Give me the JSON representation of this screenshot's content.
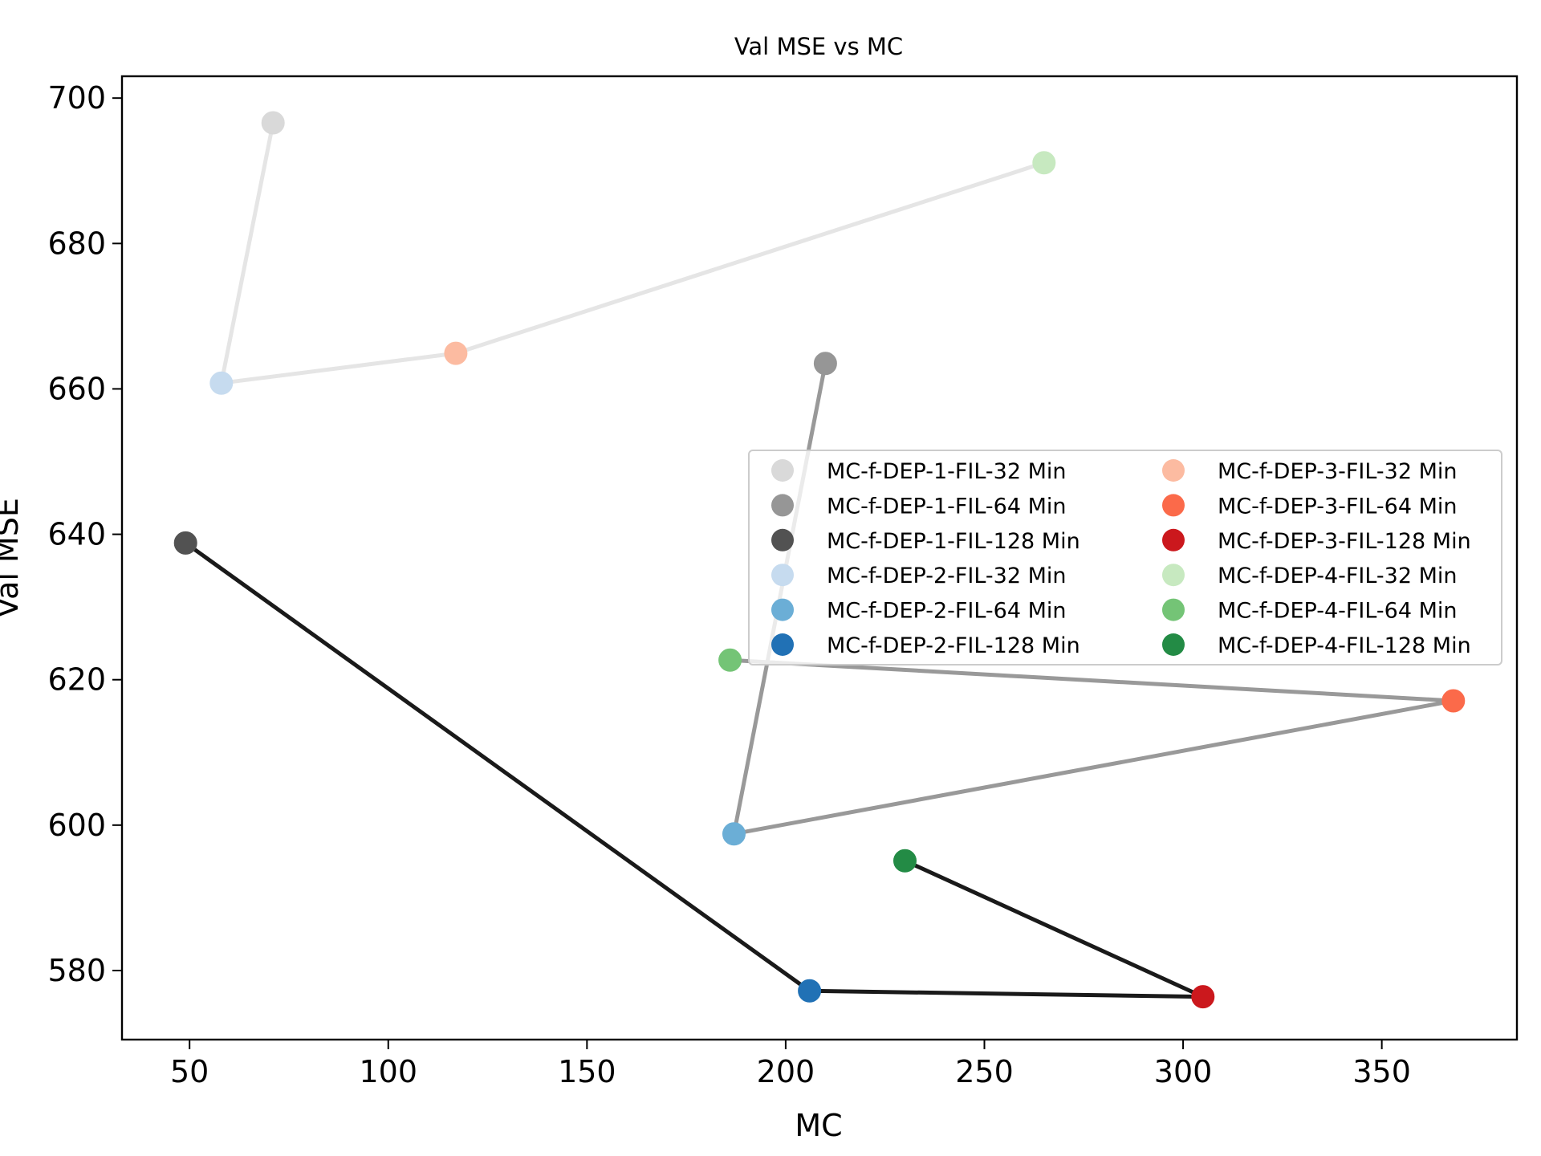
{
  "chart_data": {
    "type": "scatter",
    "title": "Val MSE vs MC",
    "xlabel": "MC",
    "ylabel": "Val MSE",
    "xlim": [
      33,
      384
    ],
    "ylim": [
      570.5,
      703
    ],
    "xticks": [
      50,
      100,
      150,
      200,
      250,
      300,
      350
    ],
    "yticks": [
      580,
      600,
      620,
      640,
      660,
      680,
      700
    ],
    "grid": false,
    "legend_position": "center-right",
    "series": [
      {
        "name": "MC-f-DEP-1-FIL-32 Min",
        "x": 71,
        "y": 696.6,
        "color": "#d9d9d9"
      },
      {
        "name": "MC-f-DEP-1-FIL-64 Min",
        "x": 210,
        "y": 663.5,
        "color": "#969696"
      },
      {
        "name": "MC-f-DEP-1-FIL-128 Min",
        "x": 49,
        "y": 638.8,
        "color": "#525252"
      },
      {
        "name": "MC-f-DEP-2-FIL-32 Min",
        "x": 58,
        "y": 660.8,
        "color": "#c6dbef"
      },
      {
        "name": "MC-f-DEP-2-FIL-64 Min",
        "x": 187,
        "y": 598.8,
        "color": "#6baed6"
      },
      {
        "name": "MC-f-DEP-2-FIL-128 Min",
        "x": 206,
        "y": 577.2,
        "color": "#2171b5"
      },
      {
        "name": "MC-f-DEP-3-FIL-32 Min",
        "x": 117,
        "y": 664.9,
        "color": "#fcbba1"
      },
      {
        "name": "MC-f-DEP-3-FIL-64 Min",
        "x": 368,
        "y": 617.1,
        "color": "#fb6a4a"
      },
      {
        "name": "MC-f-DEP-3-FIL-128 Min",
        "x": 305,
        "y": 576.4,
        "color": "#cb181d"
      },
      {
        "name": "MC-f-DEP-4-FIL-32 Min",
        "x": 265,
        "y": 691.1,
        "color": "#c7e9c0"
      },
      {
        "name": "MC-f-DEP-4-FIL-64 Min",
        "x": 186,
        "y": 622.7,
        "color": "#74c476"
      },
      {
        "name": "MC-f-DEP-4-FIL-128 Min",
        "x": 230,
        "y": 595.1,
        "color": "#238b45"
      }
    ],
    "lines": [
      {
        "group": "FIL-32",
        "color": "#e5e5e5",
        "points": [
          [
            71,
            696.6
          ],
          [
            58,
            660.8
          ],
          [
            117,
            664.9
          ],
          [
            265,
            691.1
          ]
        ]
      },
      {
        "group": "FIL-64",
        "color": "#999999",
        "points": [
          [
            210,
            663.5
          ],
          [
            187,
            598.8
          ],
          [
            368,
            617.1
          ],
          [
            186,
            622.7
          ]
        ]
      },
      {
        "group": "FIL-128",
        "color": "#1a1a1a",
        "points": [
          [
            49,
            638.8
          ],
          [
            206,
            577.2
          ],
          [
            305,
            576.4
          ],
          [
            230,
            595.1
          ]
        ]
      }
    ]
  }
}
